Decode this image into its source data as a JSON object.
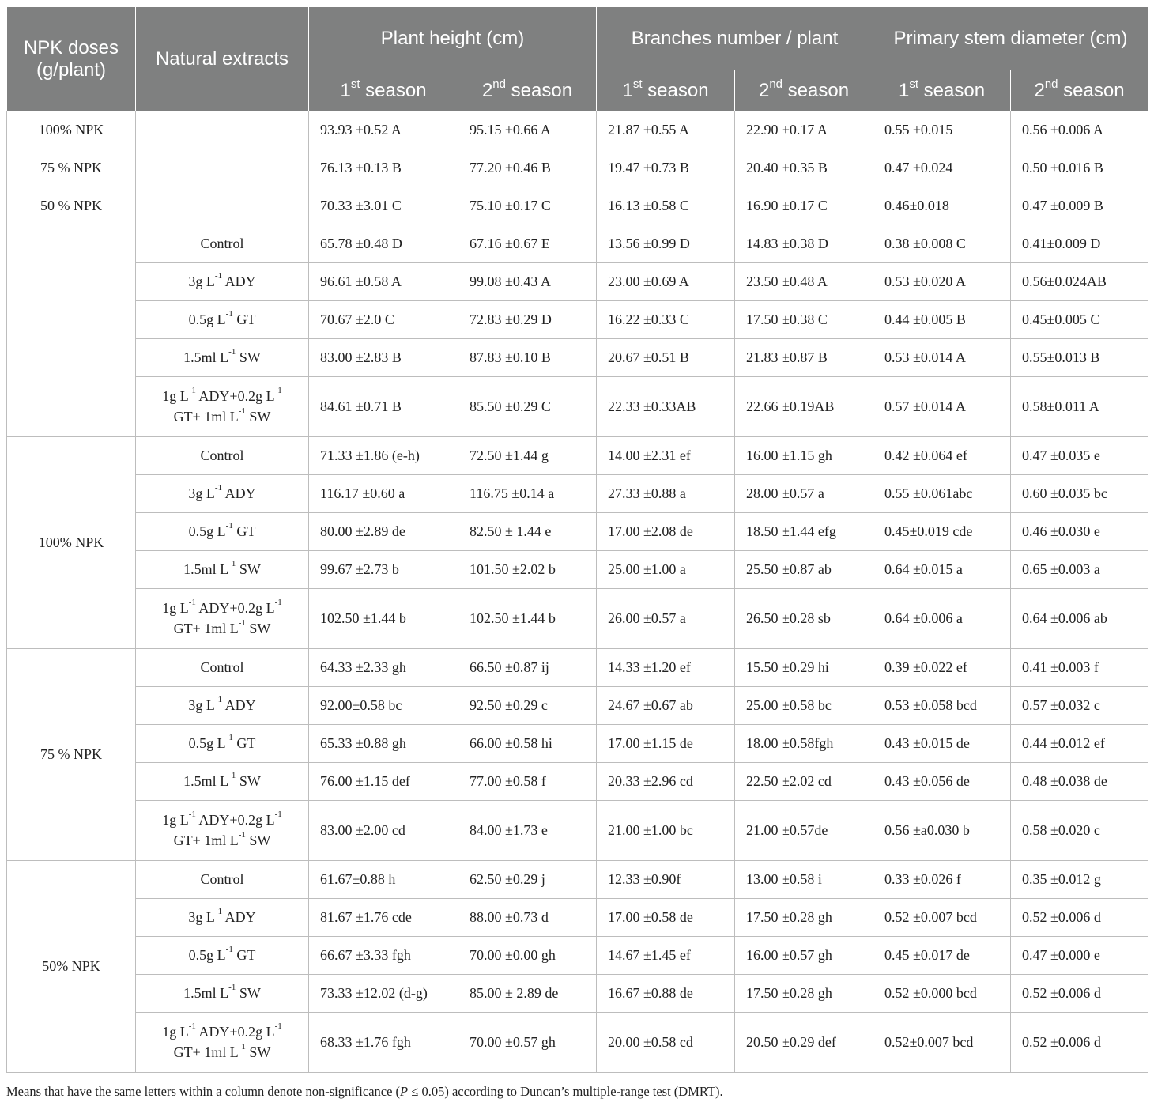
{
  "headers": {
    "npk": "NPK doses (g/plant)",
    "extracts": "Natural extracts",
    "plant_height": "Plant height (cm)",
    "branches": "Branches number / plant",
    "stem": "Primary stem diameter (cm)",
    "season1_num": "1",
    "season1_sup": "st",
    "season1_word": "season",
    "season2_num": "2",
    "season2_sup": "nd",
    "season2_word": "season"
  },
  "extracts": {
    "control": "Control",
    "ady": {
      "a": "3g L",
      "sup": "-1",
      "b": " ADY"
    },
    "gt": {
      "a": "0.5g L",
      "sup": "-1",
      "b": " GT"
    },
    "sw": {
      "a": "1.5ml L",
      "sup": "-1",
      "b": " SW"
    },
    "mix": {
      "a": "1g L",
      "sup1": "-1",
      "b": " ADY+0.2g L",
      "sup2": "-1",
      "c": "GT+ 1ml L",
      "sup3": "-1",
      "d": " SW"
    }
  },
  "npk_labels": {
    "n100": "100% NPK",
    "n75": "75 % NPK",
    "n50": "50 % NPK",
    "n50b": "50% NPK"
  },
  "main_npk": [
    [
      "93.93 ±0.52 A",
      "95.15 ±0.66 A",
      "21.87 ±0.55 A",
      "22.90 ±0.17 A",
      "0.55 ±0.015",
      "0.56 ±0.006 A"
    ],
    [
      "76.13 ±0.13 B",
      "77.20 ±0.46 B",
      "19.47 ±0.73 B",
      "20.40 ±0.35 B",
      "0.47 ±0.024",
      "0.50 ±0.016 B"
    ],
    [
      "70.33 ±3.01 C",
      "75.10 ±0.17 C",
      "16.13 ±0.58 C",
      "16.90 ±0.17 C",
      "0.46±0.018",
      "0.47 ±0.009 B"
    ]
  ],
  "main_extract": [
    [
      "65.78 ±0.48 D",
      "67.16 ±0.67 E",
      "13.56 ±0.99 D",
      "14.83 ±0.38 D",
      "0.38 ±0.008 C",
      "0.41±0.009 D"
    ],
    [
      "96.61 ±0.58 A",
      "99.08 ±0.43 A",
      "23.00 ±0.69 A",
      "23.50 ±0.48 A",
      "0.53 ±0.020 A",
      "0.56±0.024AB"
    ],
    [
      "70.67 ±2.0 C",
      "72.83 ±0.29 D",
      "16.22 ±0.33 C",
      "17.50 ±0.38 C",
      "0.44 ±0.005 B",
      "0.45±0.005 C"
    ],
    [
      "83.00 ±2.83 B",
      "87.83 ±0.10 B",
      "20.67 ±0.51 B",
      "21.83 ±0.87 B",
      "0.53 ±0.014 A",
      "0.55±0.013 B"
    ],
    [
      "84.61 ±0.71 B",
      "85.50 ±0.29 C",
      "22.33 ±0.33AB",
      "22.66 ±0.19AB",
      "0.57 ±0.014 A",
      "0.58±0.011 A"
    ]
  ],
  "inter_100": [
    [
      "71.33 ±1.86 (e-h)",
      "72.50 ±1.44 g",
      "14.00 ±2.31 ef",
      "16.00 ±1.15 gh",
      "0.42 ±0.064 ef",
      "0.47 ±0.035 e"
    ],
    [
      "116.17 ±0.60 a",
      "116.75 ±0.14 a",
      "27.33 ±0.88 a",
      "28.00 ±0.57 a",
      "0.55 ±0.061abc",
      "0.60 ±0.035 bc"
    ],
    [
      "80.00 ±2.89 de",
      "82.50 ± 1.44 e",
      "17.00 ±2.08 de",
      "18.50 ±1.44 efg",
      "0.45±0.019 cde",
      "0.46 ±0.030 e"
    ],
    [
      "99.67 ±2.73 b",
      "101.50 ±2.02 b",
      "25.00 ±1.00 a",
      "25.50 ±0.87 ab",
      "0.64 ±0.015 a",
      "0.65 ±0.003 a"
    ],
    [
      "102.50 ±1.44 b",
      "102.50 ±1.44 b",
      "26.00 ±0.57 a",
      "26.50 ±0.28 sb",
      "0.64 ±0.006 a",
      "0.64 ±0.006 ab"
    ]
  ],
  "inter_75": [
    [
      "64.33 ±2.33 gh",
      "66.50 ±0.87 ij",
      "14.33 ±1.20 ef",
      "15.50 ±0.29 hi",
      "0.39 ±0.022 ef",
      "0.41 ±0.003 f"
    ],
    [
      "92.00±0.58 bc",
      "92.50 ±0.29 c",
      "24.67 ±0.67 ab",
      "25.00 ±0.58 bc",
      "0.53 ±0.058 bcd",
      "0.57 ±0.032 c"
    ],
    [
      "65.33 ±0.88 gh",
      "66.00 ±0.58 hi",
      "17.00 ±1.15 de",
      "18.00 ±0.58fgh",
      "0.43 ±0.015 de",
      "0.44 ±0.012 ef"
    ],
    [
      "76.00 ±1.15 def",
      "77.00 ±0.58 f",
      "20.33 ±2.96 cd",
      "22.50 ±2.02 cd",
      "0.43 ±0.056 de",
      "0.48 ±0.038 de"
    ],
    [
      "83.00 ±2.00 cd",
      "84.00 ±1.73 e",
      "21.00 ±1.00 bc",
      "21.00 ±0.57de",
      "0.56 ±a0.030 b",
      "0.58 ±0.020 c"
    ]
  ],
  "inter_50": [
    [
      "61.67±0.88 h",
      "62.50 ±0.29 j",
      "12.33 ±0.90f",
      "13.00 ±0.58 i",
      "0.33 ±0.026 f",
      "0.35 ±0.012 g"
    ],
    [
      "81.67 ±1.76 cde",
      "88.00 ±0.73 d",
      "17.00 ±0.58 de",
      "17.50 ±0.28 gh",
      "0.52 ±0.007 bcd",
      "0.52 ±0.006 d"
    ],
    [
      "66.67 ±3.33 fgh",
      "70.00 ±0.00 gh",
      "14.67 ±1.45 ef",
      "16.00 ±0.57 gh",
      "0.45 ±0.017 de",
      "0.47 ±0.000 e"
    ],
    [
      "73.33 ±12.02 (d-g)",
      "85.00 ± 2.89 de",
      "16.67 ±0.88 de",
      "17.50 ±0.28 gh",
      "0.52 ±0.000 bcd",
      "0.52 ±0.006 d"
    ],
    [
      "68.33 ±1.76 fgh",
      "70.00 ±0.57 gh",
      "20.00 ±0.58 cd",
      "20.50 ±0.29 def",
      "0.52±0.007 bcd",
      "0.52 ±0.006 d"
    ]
  ],
  "footnote": {
    "a": "Means that have the same letters within a column denote non-significance (",
    "p": "P",
    "b": " ≤ 0.05) according to Duncan’s multiple-range test (DMRT)."
  }
}
